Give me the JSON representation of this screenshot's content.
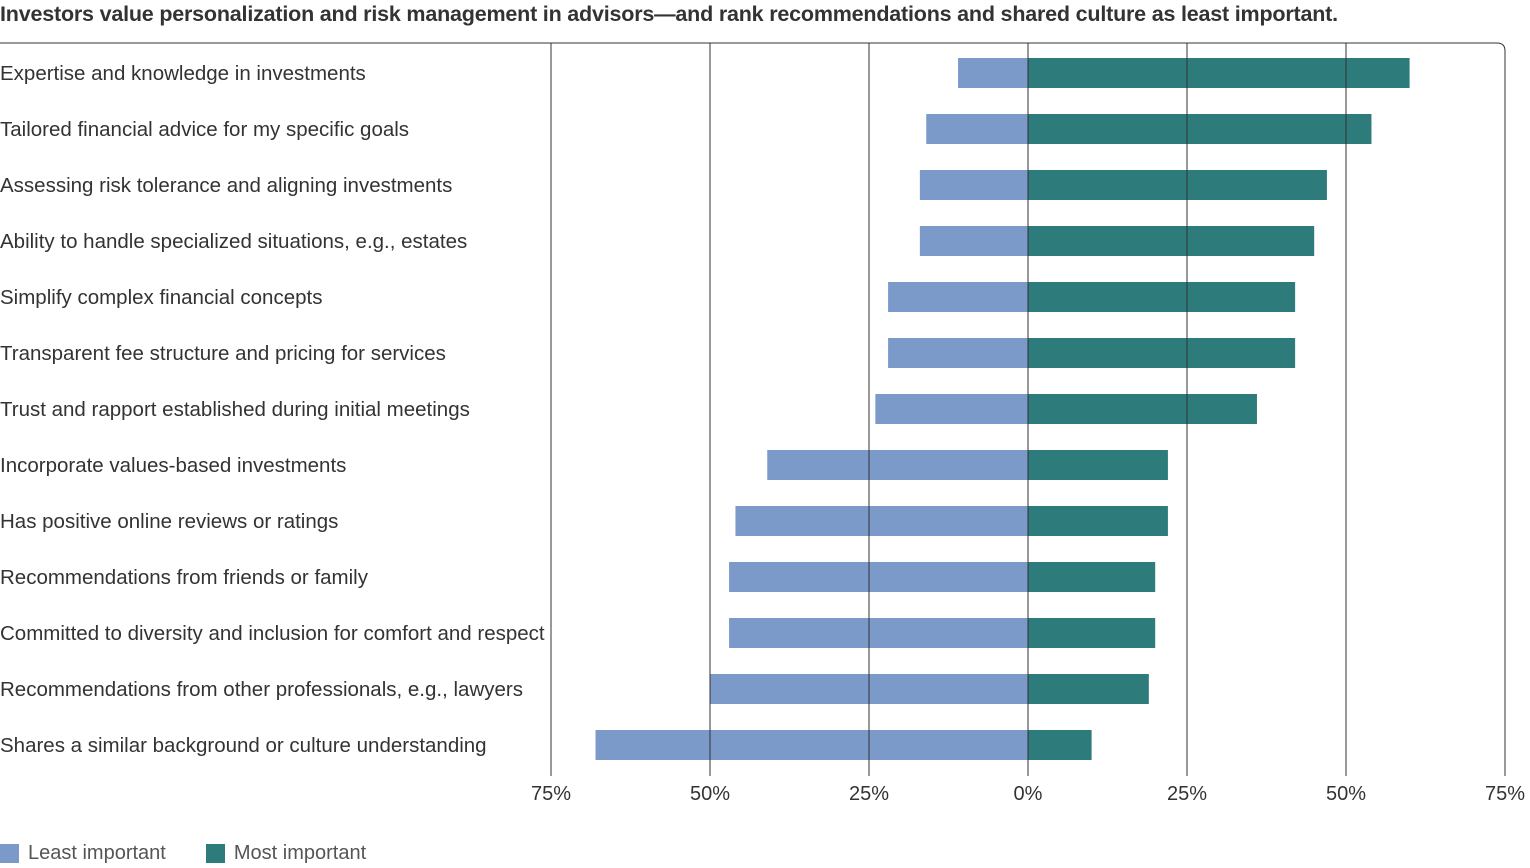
{
  "chart_data": {
    "type": "bar",
    "orientation": "horizontal-diverging",
    "title": "Investors value personalization and risk management in advisors—and rank recommendations and shared culture as least important.",
    "categories": [
      "Expertise and knowledge in investments",
      "Tailored financial advice for my specific goals",
      "Assessing risk tolerance and aligning investments",
      "Ability to handle specialized situations, e.g., estates",
      "Simplify complex financial concepts",
      "Transparent fee structure and pricing for services",
      "Trust and rapport established during initial meetings",
      "Incorporate values-based investments",
      "Has positive online reviews or ratings",
      "Recommendations from friends or family",
      "Committed to diversity and inclusion for comfort and respect",
      "Recommendations from other professionals, e.g., lawyers",
      "Shares a similar background or culture understanding"
    ],
    "series": [
      {
        "name": "Least important",
        "values": [
          11,
          16,
          17,
          17,
          22,
          22,
          24,
          41,
          46,
          47,
          47,
          50,
          68
        ]
      },
      {
        "name": "Most important",
        "values": [
          60,
          54,
          47,
          45,
          42,
          42,
          36,
          22,
          22,
          20,
          20,
          19,
          10
        ]
      }
    ],
    "xlim": [
      -75,
      75
    ],
    "x_ticks": [
      -75,
      -50,
      -25,
      0,
      25,
      50,
      75
    ],
    "x_tick_labels": [
      "75%",
      "50%",
      "25%",
      "0%",
      "25%",
      "50%",
      "75%"
    ],
    "grid": true,
    "legend": "bottom-left",
    "colors": {
      "least": "#7b99c9",
      "most": "#2e7b7b",
      "grid": "#333333",
      "text": "#333333"
    }
  }
}
